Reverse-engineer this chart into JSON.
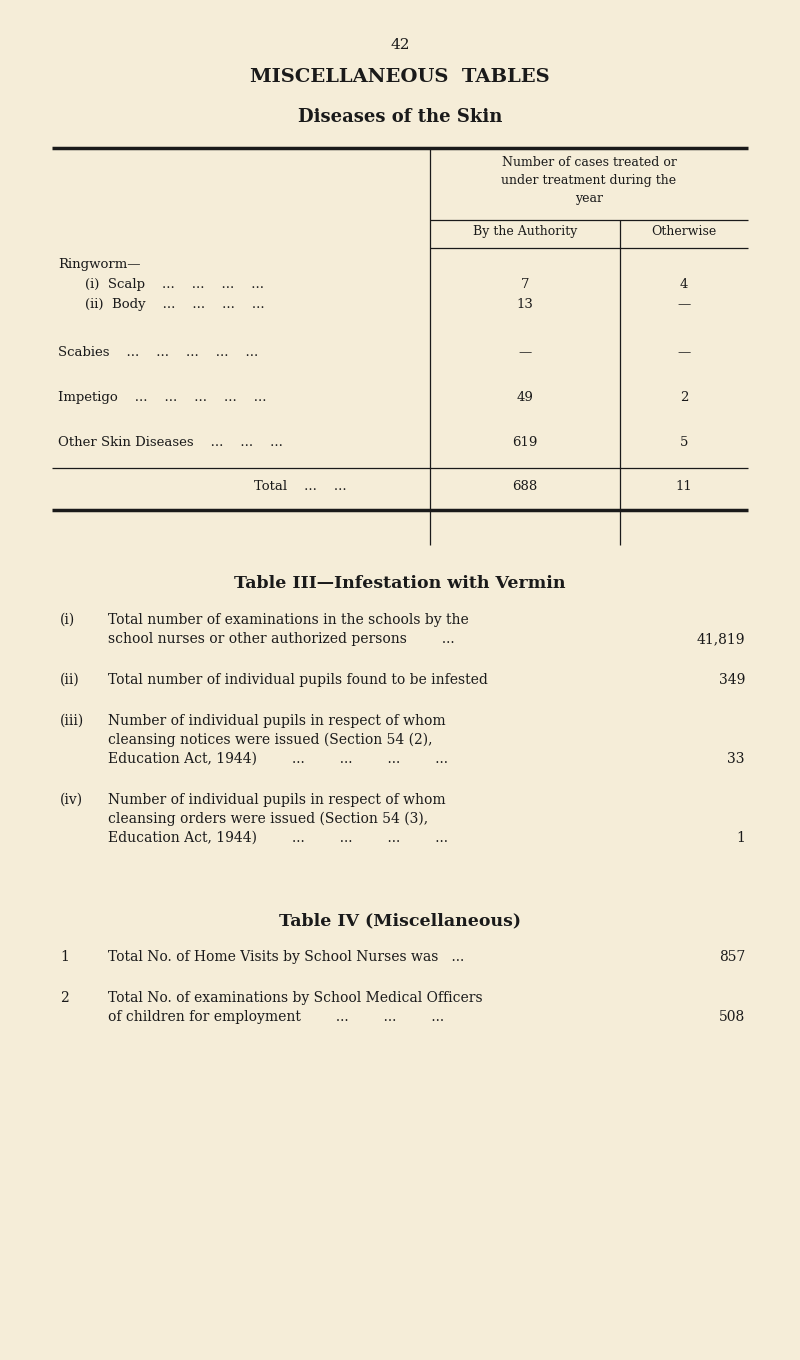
{
  "bg_color": "#f5edd8",
  "text_color": "#1a1a1a",
  "page_number": "42",
  "main_title": "MISCELLANEOUS  TABLES",
  "subtitle": "Diseases of the Skin",
  "table1_header1": "Number of cases treated or\nunder treatment during the\nyear",
  "table1_col1": "By the Authority",
  "table1_col2": "Otherwise",
  "table2_title": "Table III—Infestation with Vermin",
  "table2_rows": [
    {
      "num": "(i)",
      "line1": "Total number of examinations in the schools by the",
      "line2": "school nurses or other authorized persons        ...",
      "line3": "",
      "value": "41,819"
    },
    {
      "num": "(ii)",
      "line1": "Total number of individual pupils found to be infested",
      "line2": "",
      "line3": "",
      "value": "349"
    },
    {
      "num": "(iii)",
      "line1": "Number of individual pupils in respect of whom",
      "line2": "cleansing notices were issued (Section 54 (2),",
      "line3": "Education Act, 1944)        ...        ...        ...        ...",
      "value": "33"
    },
    {
      "num": "(iv)",
      "line1": "Number of individual pupils in respect of whom",
      "line2": "cleansing orders were issued (Section 54 (3),",
      "line3": "Education Act, 1944)        ...        ...        ...        ...",
      "value": "1"
    }
  ],
  "table3_title": "Table IV (Miscellaneous)",
  "table3_rows": [
    {
      "num": "1",
      "line1": "Total No. of Home Visits by School Nurses was   ...",
      "line2": "",
      "value": "857"
    },
    {
      "num": "2",
      "line1": "Total No. of examinations by School Medical Officers",
      "line2": "of children for employment        ...        ...        ...",
      "value": "508"
    }
  ]
}
